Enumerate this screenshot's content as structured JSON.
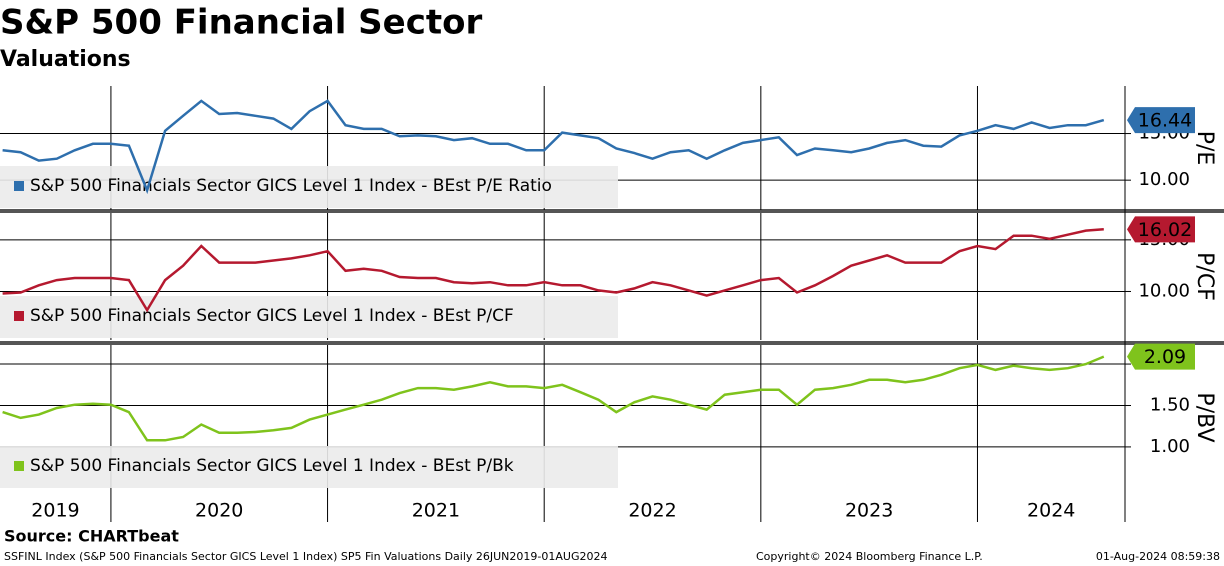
{
  "header": {
    "title": "S&P 500 Financial Sector",
    "subtitle": "Valuations"
  },
  "x_axis": {
    "labels": [
      2019,
      2020,
      2021,
      2022,
      2023,
      2024
    ]
  },
  "chart_data": [
    {
      "type": "line",
      "ylabel": "P/E",
      "xlim": [
        2019.488,
        2024.681
      ],
      "xticks": [
        2020,
        2021,
        2022,
        2023,
        2024
      ],
      "ylim": [
        6.8,
        20.1
      ],
      "yticks": [
        {
          "value": 10,
          "label": "10.00"
        },
        {
          "value": 15,
          "label": "15.00"
        }
      ],
      "grid": true,
      "x": [
        2019.5,
        2019.583,
        2019.667,
        2019.75,
        2019.833,
        2019.917,
        2020,
        2020.083,
        2020.167,
        2020.25,
        2020.333,
        2020.417,
        2020.5,
        2020.583,
        2020.667,
        2020.75,
        2020.833,
        2020.917,
        2021,
        2021.083,
        2021.167,
        2021.25,
        2021.333,
        2021.417,
        2021.5,
        2021.583,
        2021.667,
        2021.75,
        2021.833,
        2021.917,
        2022,
        2022.083,
        2022.167,
        2022.25,
        2022.333,
        2022.417,
        2022.5,
        2022.583,
        2022.667,
        2022.75,
        2022.833,
        2022.917,
        2023,
        2023.083,
        2023.167,
        2023.25,
        2023.333,
        2023.417,
        2023.5,
        2023.583,
        2023.667,
        2023.75,
        2023.833,
        2023.917,
        2024,
        2024.083,
        2024.167,
        2024.25,
        2024.333,
        2024.417,
        2024.5,
        2024.583
      ],
      "series": [
        {
          "name": "S&P 500 Financials Sector GICS Level 1 Index - BEst P/E Ratio",
          "color": "#2e6fad",
          "values": [
            13.2,
            13.0,
            12.1,
            12.3,
            13.2,
            13.9,
            13.9,
            13.7,
            8.9,
            15.3,
            16.9,
            18.5,
            17.1,
            17.2,
            16.9,
            16.6,
            15.5,
            17.4,
            18.5,
            15.9,
            15.5,
            15.5,
            14.7,
            14.8,
            14.7,
            14.3,
            14.5,
            13.9,
            13.9,
            13.2,
            13.2,
            15.1,
            14.8,
            14.5,
            13.4,
            12.9,
            12.3,
            13.0,
            13.2,
            12.3,
            13.2,
            14.0,
            14.3,
            14.6,
            12.7,
            13.4,
            13.2,
            13.0,
            13.4,
            14.0,
            14.3,
            13.7,
            13.6,
            14.8,
            15.3,
            15.9,
            15.5,
            16.2,
            15.6,
            15.9,
            15.9,
            16.44
          ]
        }
      ]
    },
    {
      "type": "line",
      "ylabel": "P/CF",
      "xlim": [
        2019.488,
        2024.681
      ],
      "xticks": [
        2020,
        2021,
        2022,
        2023,
        2024
      ],
      "ylim": [
        5.3,
        17.6
      ],
      "yticks": [
        {
          "value": 10,
          "label": "10.00"
        },
        {
          "value": 15,
          "label": "15.00"
        }
      ],
      "grid": true,
      "x": [
        2019.5,
        2019.583,
        2019.667,
        2019.75,
        2019.833,
        2019.917,
        2020,
        2020.083,
        2020.167,
        2020.25,
        2020.333,
        2020.417,
        2020.5,
        2020.583,
        2020.667,
        2020.75,
        2020.833,
        2020.917,
        2021,
        2021.083,
        2021.167,
        2021.25,
        2021.333,
        2021.417,
        2021.5,
        2021.583,
        2021.667,
        2021.75,
        2021.833,
        2021.917,
        2022,
        2022.083,
        2022.167,
        2022.25,
        2022.333,
        2022.417,
        2022.5,
        2022.583,
        2022.667,
        2022.75,
        2022.833,
        2022.917,
        2023,
        2023.083,
        2023.167,
        2023.25,
        2023.333,
        2023.417,
        2023.5,
        2023.583,
        2023.667,
        2023.75,
        2023.833,
        2023.917,
        2024,
        2024.083,
        2024.167,
        2024.25,
        2024.333,
        2024.417,
        2024.5,
        2024.583
      ],
      "series": [
        {
          "name": "S&P 500 Financials Sector GICS Level 1 Index - BEst P/CF",
          "color": "#b5192f",
          "values": [
            9.8,
            9.9,
            10.6,
            11.1,
            11.3,
            11.3,
            11.3,
            11.1,
            8.2,
            11.1,
            12.5,
            14.4,
            12.8,
            12.8,
            12.8,
            13.0,
            13.2,
            13.5,
            13.9,
            12.0,
            12.2,
            12.0,
            11.4,
            11.3,
            11.3,
            10.9,
            10.8,
            10.9,
            10.6,
            10.6,
            10.9,
            10.6,
            10.6,
            10.1,
            9.9,
            10.3,
            10.9,
            10.6,
            10.1,
            9.6,
            10.1,
            10.6,
            11.1,
            11.3,
            9.9,
            10.6,
            11.5,
            12.5,
            13.0,
            13.5,
            12.8,
            12.8,
            12.8,
            13.9,
            14.4,
            14.1,
            15.4,
            15.4,
            15.1,
            15.5,
            15.9,
            16.02
          ]
        }
      ]
    },
    {
      "type": "line",
      "ylabel": "P/BV",
      "xlim": [
        2019.488,
        2024.681
      ],
      "xticks": [
        2020,
        2021,
        2022,
        2023,
        2024
      ],
      "ylim": [
        0.48,
        2.23
      ],
      "yticks": [
        {
          "value": 1,
          "label": "1.00"
        },
        {
          "value": 1.5,
          "label": "1.50"
        },
        {
          "value": 2,
          "label": "2.00"
        }
      ],
      "grid": true,
      "x": [
        2019.5,
        2019.583,
        2019.667,
        2019.75,
        2019.833,
        2019.917,
        2020,
        2020.083,
        2020.167,
        2020.25,
        2020.333,
        2020.417,
        2020.5,
        2020.583,
        2020.667,
        2020.75,
        2020.833,
        2020.917,
        2021,
        2021.083,
        2021.167,
        2021.25,
        2021.333,
        2021.417,
        2021.5,
        2021.583,
        2021.667,
        2021.75,
        2021.833,
        2021.917,
        2022,
        2022.083,
        2022.167,
        2022.25,
        2022.333,
        2022.417,
        2022.5,
        2022.583,
        2022.667,
        2022.75,
        2022.833,
        2022.917,
        2023,
        2023.083,
        2023.167,
        2023.25,
        2023.333,
        2023.417,
        2023.5,
        2023.583,
        2023.667,
        2023.75,
        2023.833,
        2023.917,
        2024,
        2024.083,
        2024.167,
        2024.25,
        2024.333,
        2024.417,
        2024.5,
        2024.583
      ],
      "series": [
        {
          "name": "S&P 500 Financials Sector GICS Level 1 Index - BEst P/Bk",
          "color": "#7fc31c",
          "values": [
            1.42,
            1.35,
            1.39,
            1.47,
            1.51,
            1.52,
            1.51,
            1.42,
            1.08,
            1.08,
            1.12,
            1.27,
            1.17,
            1.17,
            1.18,
            1.2,
            1.23,
            1.33,
            1.39,
            1.45,
            1.51,
            1.57,
            1.65,
            1.71,
            1.71,
            1.69,
            1.73,
            1.78,
            1.73,
            1.73,
            1.71,
            1.75,
            1.66,
            1.57,
            1.42,
            1.54,
            1.61,
            1.57,
            1.51,
            1.45,
            1.63,
            1.66,
            1.69,
            1.69,
            1.51,
            1.69,
            1.71,
            1.75,
            1.81,
            1.81,
            1.78,
            1.81,
            1.87,
            1.95,
            1.99,
            1.93,
            1.98,
            1.95,
            1.93,
            1.95,
            2.0,
            2.09
          ]
        }
      ]
    }
  ],
  "footer": {
    "source": "Source: CHARTbeat",
    "description": "SSFINL Index (S&P 500 Financials Sector GICS Level 1 Index) SP5 Fin Valuations  Daily 26JUN2019-01AUG2024",
    "copyright": "Copyright© 2024 Bloomberg Finance L.P.",
    "timestamp": "01-Aug-2024 08:59:38"
  }
}
